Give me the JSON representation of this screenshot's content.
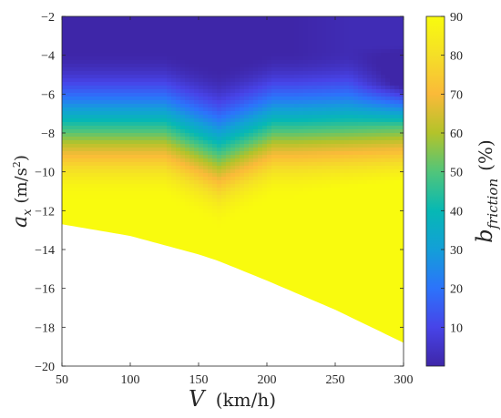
{
  "chart_data": {
    "type": "heatmap",
    "xlabel": {
      "symbol": "V",
      "unit": "(km/h)"
    },
    "ylabel": {
      "symbol": "a",
      "subscript": "x",
      "unit": "(m/s",
      "unit_sup": "2",
      "unit_end": ")"
    },
    "colorbar_label": {
      "symbol": "b",
      "subscript": "friction",
      "unit": "(%)"
    },
    "xlim": [
      50,
      300
    ],
    "ylim": [
      -20,
      -2
    ],
    "clim": [
      0,
      90
    ],
    "x_ticks": [
      50,
      100,
      150,
      200,
      250,
      300
    ],
    "y_ticks": [
      -20,
      -18,
      -16,
      -14,
      -12,
      -10,
      -8,
      -6,
      -4,
      -2
    ],
    "colorbar_ticks": [
      10,
      20,
      30,
      40,
      50,
      60,
      70,
      80,
      90
    ],
    "colormap": "parula",
    "colormap_stops": [
      "#3e26a8",
      "#4744e8",
      "#2c73fb",
      "#139fd8",
      "#06b8b4",
      "#51c57a",
      "#b3c32a",
      "#faba39",
      "#f5df27",
      "#f9fb0e"
    ],
    "feasible_boundary": {
      "x": [
        50,
        100,
        150,
        165,
        200,
        250,
        300
      ],
      "y": [
        -12.7,
        -13.3,
        -14.25,
        -14.6,
        -15.6,
        -17.1,
        -18.8
      ]
    },
    "field_description": {
      "low_region_near_top": "~0-5% friction braking for a_x above about -4 m/s^2",
      "knee_speed_kmh": 165,
      "high_region": "~85-90% at high deceleration and high speed"
    }
  }
}
